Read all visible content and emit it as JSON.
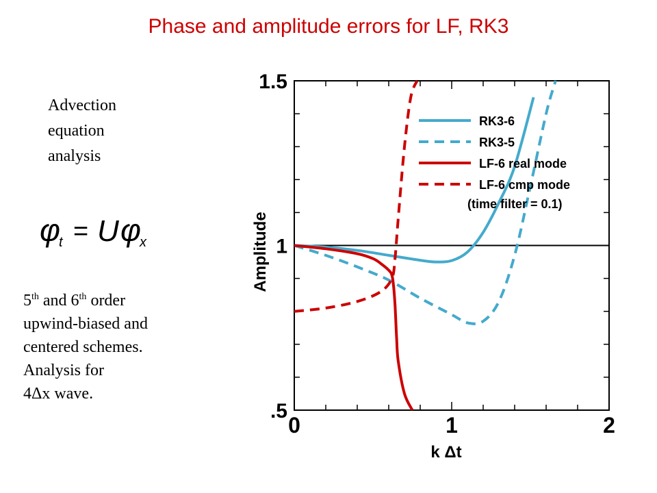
{
  "title": "Phase and amplitude errors for LF, RK3",
  "left_panel": {
    "intro_lines": [
      "Advection",
      "equation",
      "analysis"
    ],
    "equation": "φt = Uφx",
    "desc_line1_a": "5",
    "desc_line1_sup1": "th",
    "desc_line1_b": " and 6",
    "desc_line1_sup2": "th",
    "desc_line1_c": " order",
    "desc_lines": [
      "upwind-biased and",
      "centered schemes.",
      "Analysis for",
      "4Δx wave."
    ]
  },
  "chart_data": {
    "type": "line",
    "title": "",
    "xlabel": "k Δt",
    "ylabel": "Amplitude",
    "xlim": [
      0,
      2
    ],
    "ylim": [
      0.5,
      1.5
    ],
    "x_ticks": [
      "0",
      "1",
      "2"
    ],
    "y_ticks": [
      "1.5",
      "1",
      ".5"
    ],
    "reference_line_y": 1,
    "legend_position": "top-right",
    "legend_note": "(time filter = 0.1)",
    "series": [
      {
        "name": "RK3-6",
        "color": "#44aacc",
        "dash": "solid",
        "x": [
          0,
          0.2,
          0.4,
          0.6,
          0.8,
          0.9,
          1.0,
          1.1,
          1.2,
          1.3,
          1.4,
          1.52
        ],
        "y": [
          1.0,
          0.995,
          0.985,
          0.97,
          0.955,
          0.95,
          0.954,
          0.98,
          1.04,
          1.13,
          1.24,
          1.45
        ]
      },
      {
        "name": "RK3-5",
        "color": "#44aacc",
        "dash": "dashed",
        "x": [
          0,
          0.2,
          0.4,
          0.6,
          0.8,
          1.0,
          1.1,
          1.2,
          1.3,
          1.4,
          1.5,
          1.6,
          1.66
        ],
        "y": [
          1.0,
          0.97,
          0.935,
          0.895,
          0.84,
          0.79,
          0.765,
          0.77,
          0.83,
          0.97,
          1.18,
          1.4,
          1.5
        ]
      },
      {
        "name": "LF-6 real mode",
        "color": "#cc0000",
        "dash": "solid",
        "x": [
          0,
          0.2,
          0.4,
          0.5,
          0.55,
          0.6,
          0.62,
          0.63,
          0.64,
          0.65,
          0.66,
          0.7,
          0.75
        ],
        "y": [
          1.0,
          0.99,
          0.975,
          0.96,
          0.945,
          0.925,
          0.91,
          0.88,
          0.82,
          0.72,
          0.65,
          0.55,
          0.5
        ]
      },
      {
        "name": "LF-6 cmp mode",
        "color": "#cc0000",
        "dash": "dashed",
        "x": [
          0,
          0.2,
          0.4,
          0.55,
          0.62,
          0.64,
          0.66,
          0.7,
          0.74,
          0.78
        ],
        "y": [
          0.8,
          0.81,
          0.83,
          0.86,
          0.9,
          0.96,
          1.08,
          1.3,
          1.45,
          1.5
        ]
      }
    ]
  }
}
